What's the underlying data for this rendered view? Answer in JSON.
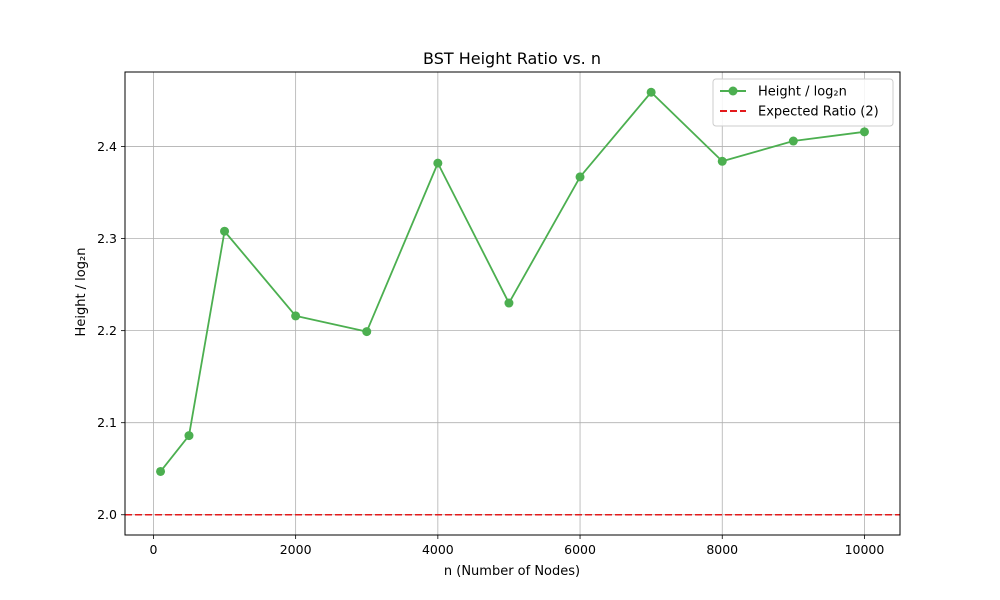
{
  "chart_data": {
    "type": "line",
    "title": "BST Height Ratio vs. n",
    "xlabel": "n (Number of Nodes)",
    "ylabel": "Height / log₂n",
    "xlim": [
      -400,
      10500
    ],
    "ylim": [
      1.978,
      2.481
    ],
    "xticks": [
      0,
      2000,
      4000,
      6000,
      8000,
      10000
    ],
    "yticks": [
      2.0,
      2.1,
      2.2,
      2.3,
      2.4
    ],
    "grid": true,
    "legend_position": "top-right",
    "series": [
      {
        "name": "Height / log₂n",
        "color": "#4caf50",
        "marker": "circle",
        "x": [
          100,
          500,
          1000,
          2000,
          3000,
          4000,
          5000,
          6000,
          7000,
          8000,
          9000,
          10000
        ],
        "y": [
          2.047,
          2.086,
          2.308,
          2.216,
          2.199,
          2.382,
          2.23,
          2.367,
          2.459,
          2.384,
          2.406,
          2.416
        ]
      }
    ],
    "reference_line": {
      "name": "Expected Ratio (2)",
      "y": 2.0,
      "color": "#e31a1c",
      "style": "dashed"
    }
  }
}
